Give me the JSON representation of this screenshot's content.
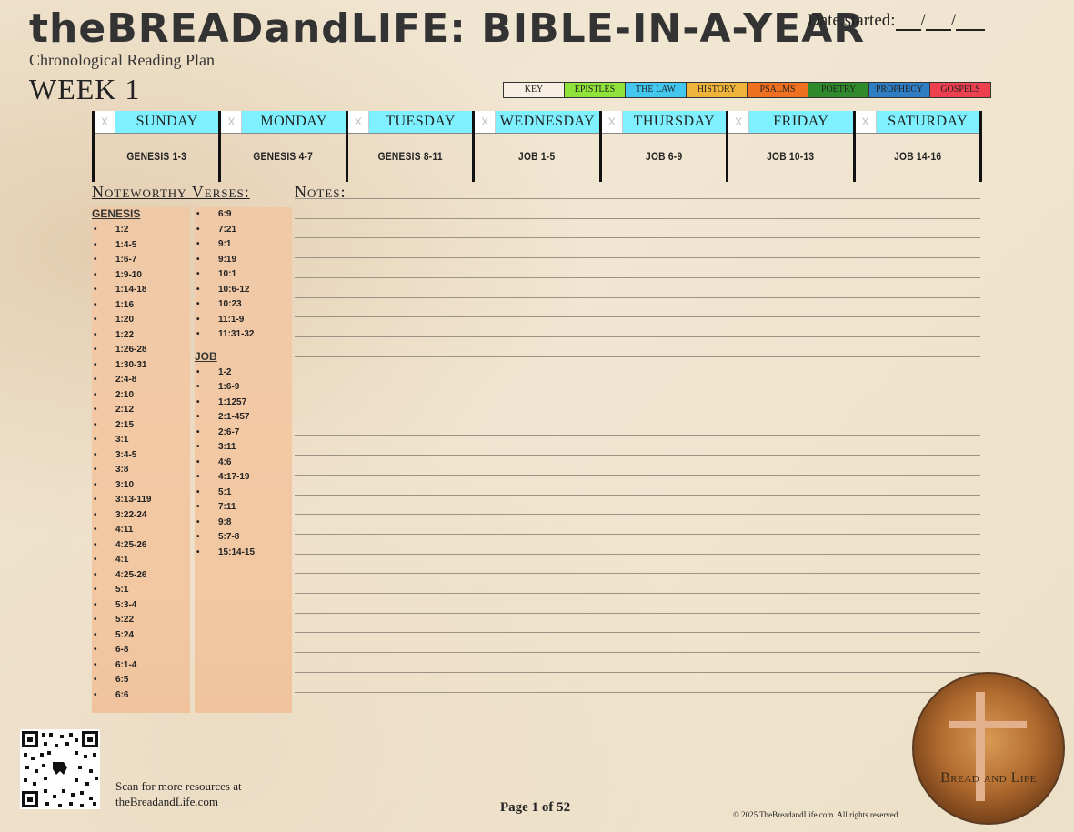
{
  "header": {
    "title": "theBREADandLIFE: BIBLE-IN-A-YEAR",
    "subtitle": "Chronological Reading Plan",
    "week": "WEEK 1",
    "date_started_label": "Date started:",
    "date_sep": "/"
  },
  "key": [
    {
      "label": "KEY",
      "color": "#f7efe3"
    },
    {
      "label": "EPISTLES",
      "color": "#8fe33a"
    },
    {
      "label": "THE LAW",
      "color": "#43c7ef"
    },
    {
      "label": "HISTORY",
      "color": "#f0b43c"
    },
    {
      "label": "PSALMS",
      "color": "#ef7021"
    },
    {
      "label": "POETRY",
      "color": "#2e8a2a"
    },
    {
      "label": "PROPHECY",
      "color": "#2f7dc2"
    },
    {
      "label": "GOSPELS",
      "color": "#ef4050"
    }
  ],
  "days": [
    {
      "name": "SUNDAY",
      "reading": "GENESIS 1-3",
      "check": "X"
    },
    {
      "name": "MONDAY",
      "reading": "GENESIS 4-7",
      "check": "X"
    },
    {
      "name": "TUESDAY",
      "reading": "GENESIS 8-11",
      "check": "X"
    },
    {
      "name": "WEDNESDAY",
      "reading": "JOB 1-5",
      "check": "X"
    },
    {
      "name": "THURSDAY",
      "reading": "JOB 6-9",
      "check": "X"
    },
    {
      "name": "FRIDAY",
      "reading": "JOB 10-13",
      "check": "X"
    },
    {
      "name": "SATURDAY",
      "reading": "JOB 14-16",
      "check": "X"
    }
  ],
  "noteworthy": {
    "heading": "Noteworthy Verses:",
    "genesis_title": "GENESIS",
    "col1": [
      "1:2",
      "1:4-5",
      "1:6-7",
      "1:9-10",
      "1:14-18",
      "1:16",
      "1:20",
      "1:22",
      "1:26-28",
      "1:30-31",
      "2:4-8",
      "2:10",
      "2:12",
      "2:15",
      "3:1",
      "3:4-5",
      "3:8",
      "3:10",
      "3:13-119",
      "3:22-24",
      "4:11",
      "4:25-26",
      "4:1",
      "4:25-26",
      "5:1",
      "5:3-4",
      "5:22",
      "5:24",
      "6-8",
      "6:1-4",
      "6:5",
      "6:6"
    ],
    "col2_genesis": [
      "6:9",
      "7:21",
      "9:1",
      "9:19",
      "10:1",
      "10:6-12",
      "10:23",
      "11:1-9",
      "11:31-32"
    ],
    "job_title": "JOB",
    "col2_job": [
      "1-2",
      "1:6-9",
      "1:1257",
      "2:1-457",
      "2:6-7",
      "3:11",
      "4:6",
      "4:17-19",
      "5:1",
      "7:11",
      "9:8",
      "5:7-8",
      "15:14-15"
    ]
  },
  "notes": {
    "heading": "Notes:"
  },
  "footer": {
    "scan_line1": "Scan for more resources at",
    "scan_line2": "theBreadandLife.com",
    "page": "Page 1 of 52",
    "copyright": "© 2025 TheBreadandLife.com. All rights reserved.",
    "logo_text": "Bread and Life"
  }
}
